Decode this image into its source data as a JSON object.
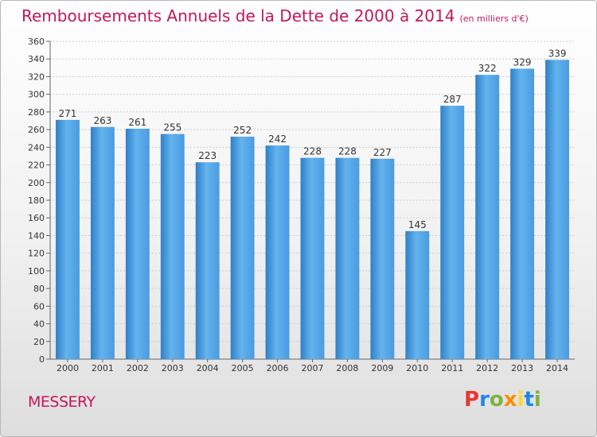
{
  "header": {
    "title": "Remboursements Annuels de la Dette de 2000 à 2014",
    "subtitle": "(en milliers d'€)"
  },
  "footer": {
    "location": "MESSERY",
    "logo": {
      "letters": [
        "P",
        "r",
        "o",
        "x",
        "i",
        "t",
        "i"
      ],
      "colors": [
        "#e53935",
        "#1e88e5",
        "#7cb342",
        "#fb8c00",
        "#fdd835",
        "#1e88e5",
        "#7cb342"
      ]
    }
  },
  "colors": {
    "bar": "#4a9be0",
    "bar_light": "#63b3ee",
    "bar_dark": "#2f7fc8",
    "title": "#c2185b"
  },
  "chart_data": {
    "type": "bar",
    "title": "Remboursements Annuels de la Dette de 2000 à 2014",
    "categories": [
      "2000",
      "2001",
      "2002",
      "2003",
      "2004",
      "2005",
      "2006",
      "2007",
      "2008",
      "2009",
      "2010",
      "2011",
      "2012",
      "2013",
      "2014"
    ],
    "values": [
      271,
      263,
      261,
      255,
      223,
      252,
      242,
      228,
      228,
      227,
      145,
      287,
      322,
      329,
      339
    ],
    "ylim": [
      0,
      360
    ],
    "yticks": [
      0,
      20,
      40,
      60,
      80,
      100,
      120,
      140,
      160,
      180,
      200,
      220,
      240,
      260,
      280,
      300,
      320,
      340,
      360
    ],
    "grid": true,
    "xlabel": "",
    "ylabel": ""
  }
}
